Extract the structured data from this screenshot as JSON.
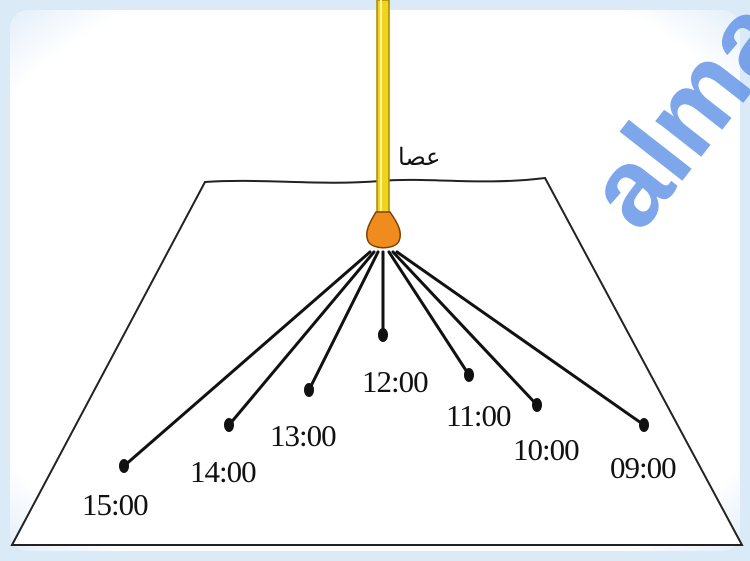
{
  "stick": {
    "label": "عصا",
    "color": "#f2d41a",
    "base_color": "#f08c1e"
  },
  "shadows": [
    {
      "time": "15:00"
    },
    {
      "time": "14:00"
    },
    {
      "time": "13:00"
    },
    {
      "time": "12:00"
    },
    {
      "time": "11:00"
    },
    {
      "time": "10:00"
    },
    {
      "time": "09:00"
    }
  ],
  "watermark": {
    "text": "alma",
    "color": "#5b8ee6"
  },
  "colors": {
    "frame_blue": "#cfe3f5",
    "ground_fill": "#ffffff",
    "line": "#111111"
  }
}
